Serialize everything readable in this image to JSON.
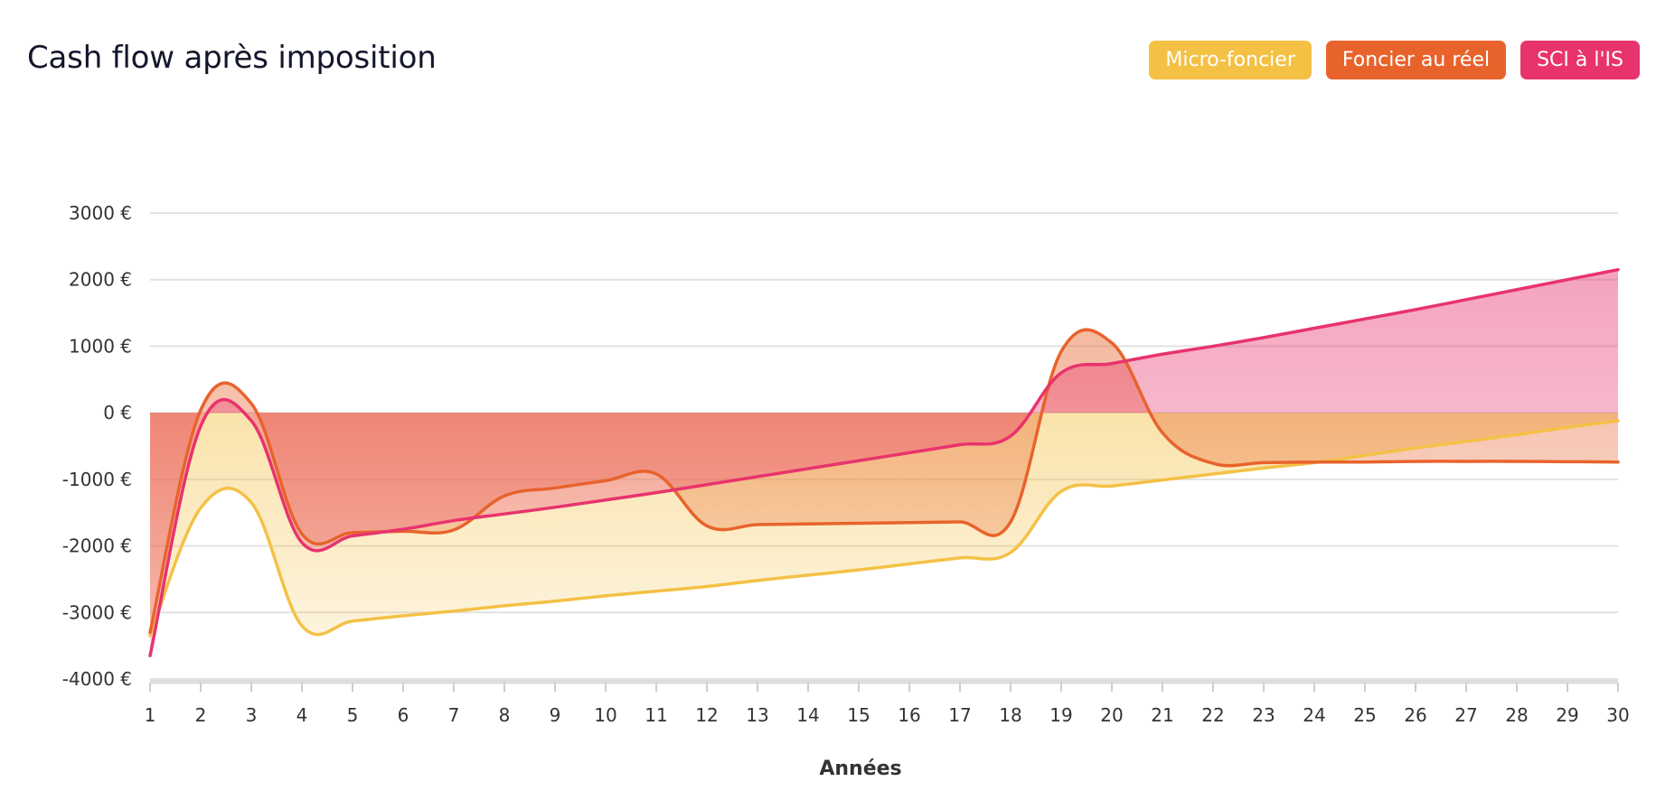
{
  "header": {
    "title": "Cash flow après imposition"
  },
  "legend": [
    {
      "label": "Micro-foncier",
      "color": "#f4c145"
    },
    {
      "label": "Foncier au réel",
      "color": "#e8632c"
    },
    {
      "label": "SCI à l'IS",
      "color": "#e8336d"
    }
  ],
  "chart_data": {
    "type": "area",
    "xlabel": "Années",
    "ylabel": "",
    "x": [
      1,
      2,
      3,
      4,
      5,
      6,
      7,
      8,
      9,
      10,
      11,
      12,
      13,
      14,
      15,
      16,
      17,
      18,
      19,
      20,
      21,
      22,
      23,
      24,
      25,
      26,
      27,
      28,
      29,
      30
    ],
    "ylim": [
      -4000,
      3000
    ],
    "yticks": [
      3000,
      2000,
      1000,
      0,
      -1000,
      -2000,
      -3000,
      -4000
    ],
    "ytick_labels": [
      "3000 €",
      "2000 €",
      "1000 €",
      "0 €",
      "-1000 €",
      "-2000 €",
      "-3000 €",
      "-4000 €"
    ],
    "grid": true,
    "legend_position": "top-right",
    "series": [
      {
        "name": "Micro-foncier",
        "color": "#f4c145",
        "values": [
          -3350,
          -1430,
          -1350,
          -3200,
          -3130,
          -3050,
          -2980,
          -2900,
          -2830,
          -2750,
          -2680,
          -2610,
          -2520,
          -2440,
          -2360,
          -2270,
          -2180,
          -2100,
          -1180,
          -1100,
          -1010,
          -920,
          -830,
          -750,
          -640,
          -530,
          -430,
          -330,
          -220,
          -120
        ]
      },
      {
        "name": "Foncier au réel",
        "color": "#e8632c",
        "values": [
          -3300,
          40,
          140,
          -1820,
          -1800,
          -1780,
          -1760,
          -1250,
          -1130,
          -1020,
          -920,
          -1700,
          -1680,
          -1670,
          -1660,
          -1650,
          -1640,
          -1640,
          920,
          1050,
          -300,
          -760,
          -750,
          -740,
          -740,
          -730,
          -730,
          -730,
          -735,
          -740
        ]
      },
      {
        "name": "SCI à l'IS",
        "color": "#e8336d",
        "values": [
          -3650,
          -200,
          -120,
          -1950,
          -1850,
          -1750,
          -1620,
          -1520,
          -1420,
          -1310,
          -1200,
          -1080,
          -960,
          -840,
          -720,
          -600,
          -480,
          -350,
          600,
          740,
          880,
          1000,
          1130,
          1270,
          1410,
          1550,
          1700,
          1850,
          2000,
          2150
        ]
      }
    ]
  }
}
